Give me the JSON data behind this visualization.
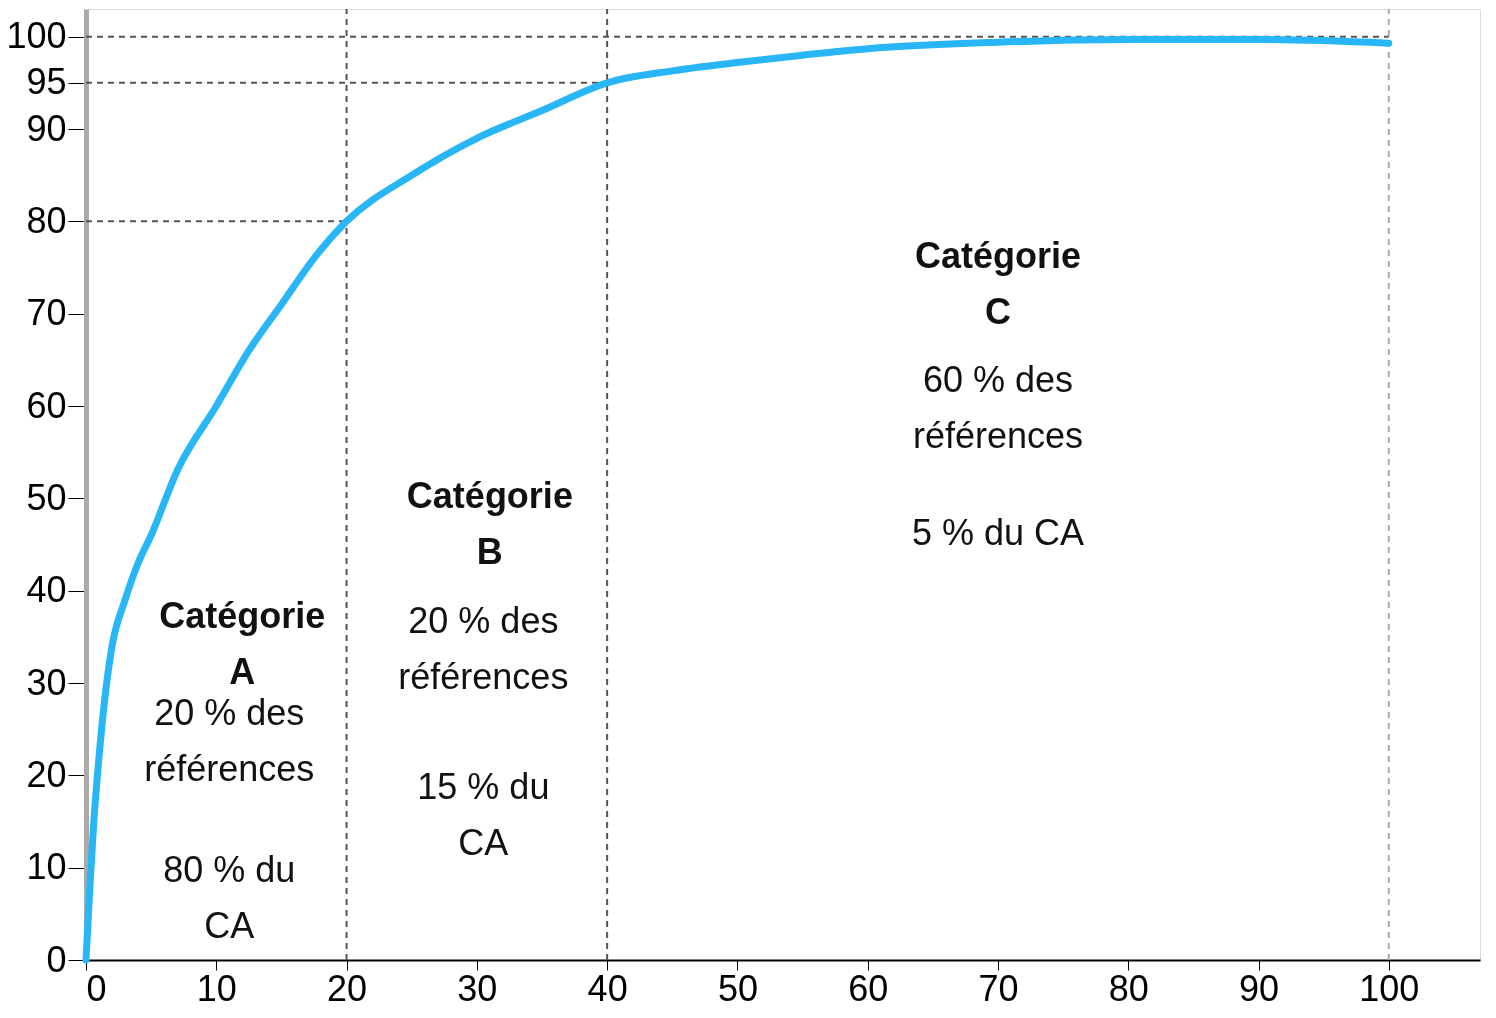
{
  "chart_data": {
    "type": "line",
    "x": [
      0,
      0.3,
      0.6,
      1,
      1.5,
      2,
      3,
      4,
      5,
      7,
      10,
      12.5,
      15,
      17.5,
      20,
      25,
      30,
      35,
      40,
      45,
      50,
      55,
      60,
      70,
      80,
      90,
      100
    ],
    "series": [
      {
        "color": "#29b6f6",
        "values": [
          0,
          8,
          15,
          22,
          29,
          34,
          39,
          43,
          46,
          53,
          60,
          66,
          71,
          76,
          80,
          85,
          89,
          92,
          95,
          96.3,
          97.2,
          98,
          98.7,
          99.4,
          99.7,
          99.7,
          99.3
        ]
      }
    ],
    "xlim": [
      0,
      107
    ],
    "ylim": [
      0,
      103
    ],
    "xticks": [
      0,
      10,
      20,
      30,
      40,
      50,
      60,
      70,
      80,
      90,
      100
    ],
    "yticks": [
      0,
      10,
      20,
      30,
      40,
      50,
      60,
      70,
      80,
      90,
      95,
      100
    ],
    "grid": false,
    "marker": "none",
    "line_style": "solid",
    "ref_lines": [
      {
        "axis": "y",
        "value": 100,
        "line_style": "dashed",
        "color": "#555555"
      },
      {
        "axis": "y",
        "value": 95,
        "line_style": "dashed",
        "color": "#555555"
      },
      {
        "axis": "y",
        "value": 80,
        "line_style": "dashed",
        "color": "#555555"
      },
      {
        "axis": "x",
        "value": 20,
        "line_style": "dashed",
        "color": "#555555"
      },
      {
        "axis": "x",
        "value": 40,
        "line_style": "dashed",
        "color": "#555555"
      },
      {
        "axis": "x",
        "value": 100,
        "line_style": "dashed",
        "color": "#aaaaaa"
      }
    ],
    "annotations": [
      "Catégorie\nA",
      "20 % des\nréférences",
      "80 % du\nCA",
      "Catégorie\nB",
      "20 % des\nréférences",
      "15 % du\nCA",
      "Catégorie\nC",
      "60 % des\nréférences",
      "5 % du CA"
    ]
  }
}
